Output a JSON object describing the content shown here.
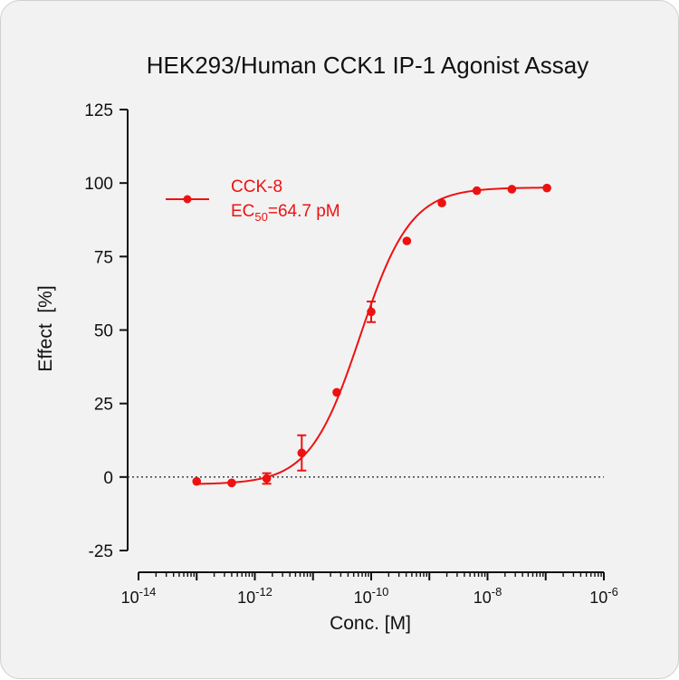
{
  "chart_data": {
    "type": "scatter",
    "title": "HEK293/Human CCK1 IP-1 Agonist Assay",
    "xlabel": "Conc. [M]",
    "ylabel": "Effect  [%]",
    "xscale": "log",
    "xlim": [
      1e-14,
      1e-06
    ],
    "ylim": [
      -25,
      125
    ],
    "yticks": [
      -25,
      0,
      25,
      50,
      75,
      100,
      125
    ],
    "xticks": [
      {
        "base": "10",
        "exp": "-14",
        "value": 1e-14
      },
      {
        "base": "10",
        "exp": "-12",
        "value": 1e-12
      },
      {
        "base": "10",
        "exp": "-10",
        "value": 1e-10
      },
      {
        "base": "10",
        "exp": "-8",
        "value": 1e-08
      },
      {
        "base": "10",
        "exp": "-6",
        "value": 1e-06
      }
    ],
    "reference_line_y": 0,
    "color": "#ee1111",
    "legend_position": "upper-left",
    "series": [
      {
        "name": "CCK-8",
        "annotation": {
          "prefix": "EC",
          "subscript": "50",
          "suffix": "=64.7 pM"
        },
        "x": [
          1e-13,
          4e-13,
          1.6e-12,
          6.4e-12,
          2.56e-11,
          1e-10,
          4.1e-10,
          1.64e-09,
          6.55e-09,
          2.62e-08,
          1.05e-07
        ],
        "y": [
          -1.5,
          -2.0,
          -0.5,
          8.2,
          28.8,
          56.2,
          80.3,
          93.2,
          97.4,
          97.9,
          98.3
        ],
        "error": [
          0,
          0,
          1.8,
          6.0,
          0,
          3.5,
          0,
          0,
          0,
          0,
          0
        ],
        "fit": {
          "bottom": -2.5,
          "top": 98.5,
          "ec50": 6.47e-11,
          "hill": 1.0
        }
      }
    ]
  }
}
